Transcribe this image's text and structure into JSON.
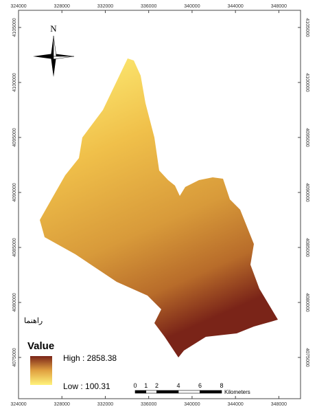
{
  "map": {
    "north_label": "N",
    "xticks": [
      324000,
      328000,
      332000,
      336000,
      340000,
      344000,
      348000
    ],
    "yticks": [
      4105000,
      4100000,
      4095000,
      4090000,
      4085000,
      4080000,
      4075000
    ],
    "xlim": [
      324000,
      350000
    ],
    "ylim": [
      4071250,
      4106560
    ],
    "legend_heading": "راهنما",
    "legend_title": "Value",
    "legend_high": "High : 2858.38",
    "legend_low": "Low : 100.31",
    "scale_ticks": [
      0,
      1,
      2,
      4,
      6,
      8
    ],
    "scale_unit": "Kilometers"
  }
}
